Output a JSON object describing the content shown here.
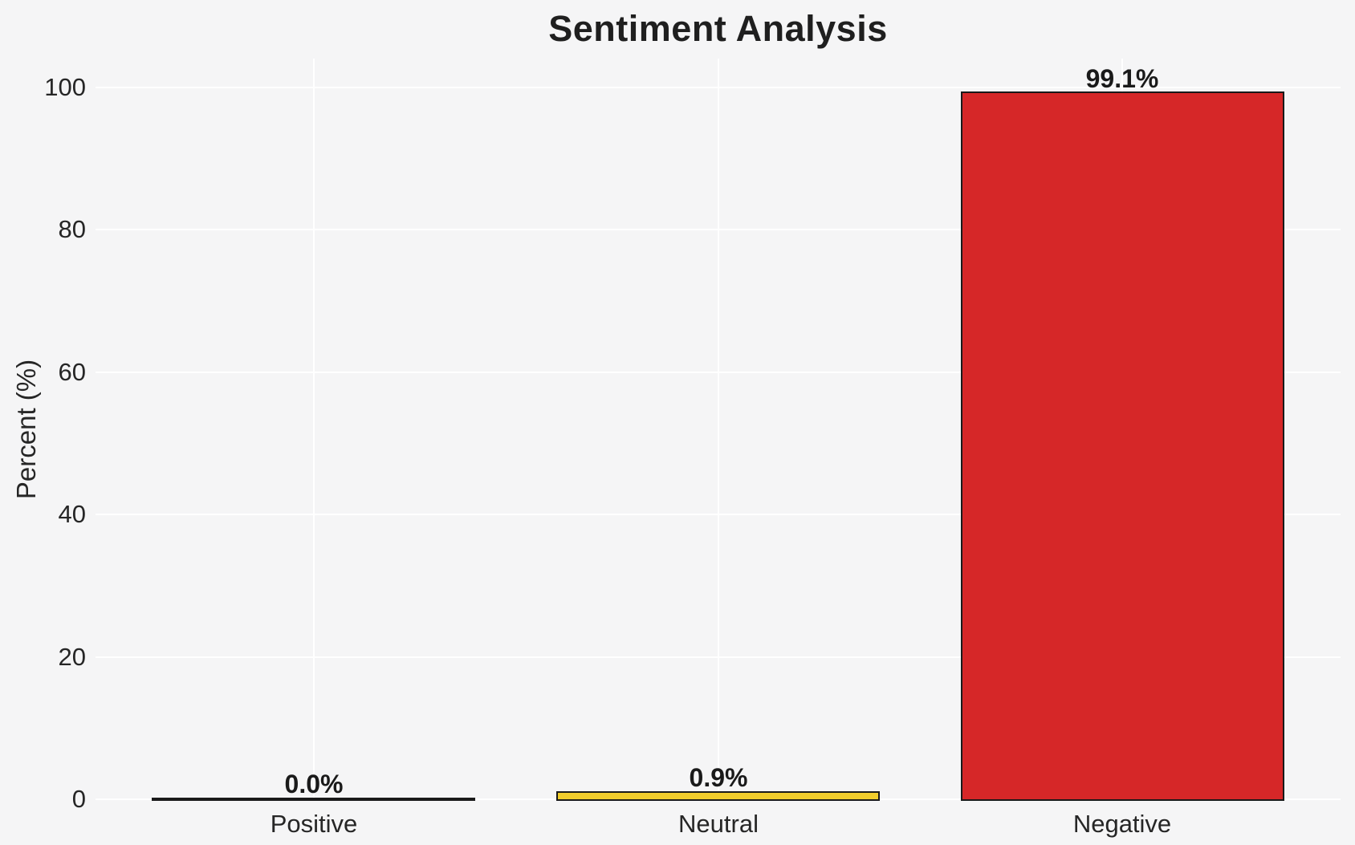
{
  "figure": {
    "background_color": "#f5f5f6",
    "gridline_color": "#ffffff",
    "title_color": "#1f1f1f",
    "text_color": "#262626"
  },
  "chart_data": {
    "type": "bar",
    "title": "Sentiment Analysis",
    "xlabel": "",
    "ylabel": "Percent (%)",
    "categories": [
      "Positive",
      "Neutral",
      "Negative"
    ],
    "values": [
      0.0,
      0.9,
      99.1
    ],
    "value_labels": [
      "0.0%",
      "0.9%",
      "99.1%"
    ],
    "bar_colors": [
      null,
      "#f2ce2c",
      "#d62728"
    ],
    "bar_edge_color": "#1a1a1a",
    "yticks": [
      0,
      20,
      40,
      60,
      80,
      100
    ],
    "ytick_labels": [
      "0",
      "20",
      "40",
      "60",
      "80",
      "100"
    ],
    "ylim": [
      0,
      104
    ],
    "grid": true,
    "grid_horizontal": true,
    "grid_vertical": true,
    "legend_position": "none"
  }
}
